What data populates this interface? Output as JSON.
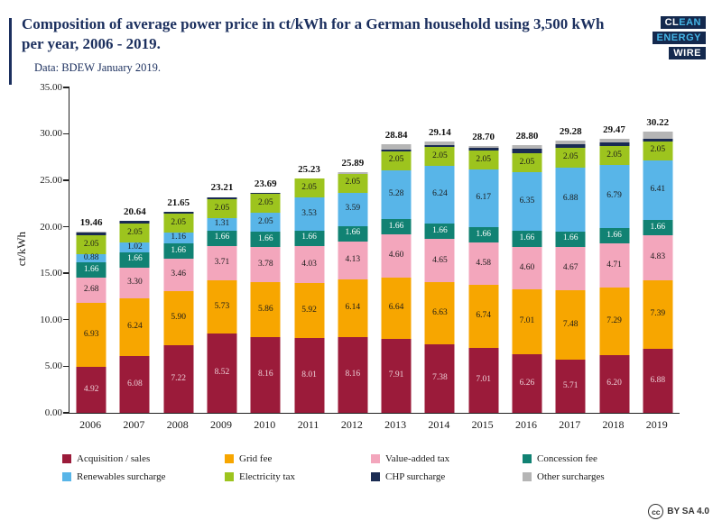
{
  "header": {
    "title": "Composition of average power price in ct/kWh for a German household using 3,500 kWh per year, 2006 - 2019.",
    "subtitle": "Data: BDEW January 2019.",
    "logo": {
      "line1_white": "CL",
      "line1_cyan": "EAN",
      "line2_white": "",
      "line2_cyan": "ENERGY",
      "line3_white": "WIRE",
      "line3_cyan": ""
    }
  },
  "footer": {
    "cc_symbol": "cc",
    "license": "BY SA 4.0"
  },
  "chart_data": {
    "type": "bar",
    "stacked": true,
    "title": "Composition of average power price in ct/kWh for a German household using 3,500 kWh per year, 2006 - 2019.",
    "subtitle": "Data: BDEW January 2019.",
    "xlabel": "",
    "ylabel": "ct/kWh",
    "ylim": [
      0,
      35
    ],
    "yticks": [
      0,
      5,
      10,
      15,
      20,
      25,
      30,
      35
    ],
    "grid": false,
    "legend_position": "bottom",
    "categories": [
      "2006",
      "2007",
      "2008",
      "2009",
      "2010",
      "2011",
      "2012",
      "2013",
      "2014",
      "2015",
      "2016",
      "2017",
      "2018",
      "2019"
    ],
    "totals": [
      19.46,
      20.64,
      21.65,
      23.21,
      23.69,
      25.23,
      25.89,
      28.84,
      29.14,
      28.7,
      28.8,
      29.28,
      29.47,
      30.22
    ],
    "label_min_value": 0.85,
    "series": [
      {
        "name": "Acquisition / sales",
        "color": "#9b1b3a",
        "label_color": "#eccfd6",
        "values": [
          4.92,
          6.08,
          7.22,
          8.52,
          8.16,
          8.01,
          8.16,
          7.91,
          7.38,
          7.01,
          6.26,
          5.71,
          6.2,
          6.88
        ]
      },
      {
        "name": "Grid fee",
        "color": "#f7a600",
        "label_color": "#1a1a1a",
        "values": [
          6.93,
          6.24,
          5.9,
          5.73,
          5.86,
          5.92,
          6.14,
          6.64,
          6.63,
          6.74,
          7.01,
          7.48,
          7.29,
          7.39
        ]
      },
      {
        "name": "Value-added tax",
        "color": "#f3a6bc",
        "label_color": "#1a1a1a",
        "values": [
          2.68,
          3.3,
          3.46,
          3.71,
          3.78,
          4.03,
          4.13,
          4.6,
          4.65,
          4.58,
          4.6,
          4.67,
          4.71,
          4.83
        ]
      },
      {
        "name": "Concession fee",
        "color": "#118273",
        "label_color": "#ffffff",
        "values": [
          1.66,
          1.66,
          1.66,
          1.66,
          1.66,
          1.66,
          1.66,
          1.66,
          1.66,
          1.66,
          1.66,
          1.66,
          1.66,
          1.66
        ]
      },
      {
        "name": "Renewables surcharge",
        "color": "#58b5e8",
        "label_color": "#1a1a1a",
        "values": [
          0.88,
          1.02,
          1.16,
          1.31,
          2.05,
          3.53,
          3.59,
          5.28,
          6.24,
          6.17,
          6.35,
          6.88,
          6.79,
          6.41
        ]
      },
      {
        "name": "Electricity tax",
        "color": "#9dc41e",
        "label_color": "#1a1a1a",
        "values": [
          2.05,
          2.05,
          2.05,
          2.05,
          2.05,
          2.05,
          2.05,
          2.05,
          2.05,
          2.05,
          2.05,
          2.05,
          2.05,
          2.05
        ]
      },
      {
        "name": "CHP surcharge",
        "color": "#1a2b52",
        "label_color": "#ffffff",
        "show_labels": false,
        "values": [
          0.31,
          0.28,
          0.19,
          0.22,
          0.13,
          0.03,
          0.0,
          0.13,
          0.18,
          0.25,
          0.44,
          0.44,
          0.35,
          0.28
        ]
      },
      {
        "name": "Other surcharges",
        "color": "#b5b5b5",
        "label_color": "#1a1a1a",
        "show_labels": false,
        "values": [
          0.03,
          0.01,
          0.01,
          0.01,
          0.0,
          0.0,
          0.16,
          0.57,
          0.35,
          0.24,
          0.43,
          0.39,
          0.42,
          0.72
        ]
      }
    ],
    "legend_rows": [
      [
        0,
        1,
        2,
        3
      ],
      [
        4,
        5,
        6,
        7
      ]
    ]
  }
}
